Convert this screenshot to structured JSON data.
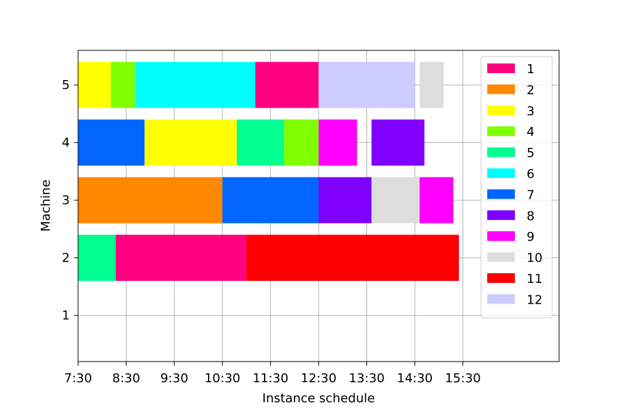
{
  "chart_data": {
    "type": "gantt",
    "xlabel": "Instance schedule",
    "ylabel": "Machine",
    "x_axis": {
      "unit": "time of day",
      "range": [
        "7:30",
        "17:30"
      ],
      "ticks": [
        "7:30",
        "8:30",
        "9:30",
        "10:30",
        "11:30",
        "12:30",
        "13:30",
        "14:30",
        "15:30"
      ]
    },
    "y_axis": {
      "range": [
        0.2,
        5.6
      ],
      "ticks": [
        "1",
        "2",
        "3",
        "4",
        "5"
      ]
    },
    "grid": true,
    "legend": {
      "placement": "top-right",
      "entries": [
        {
          "label": "1",
          "color": "#ff0080"
        },
        {
          "label": "2",
          "color": "#ff8800"
        },
        {
          "label": "3",
          "color": "#ffff00"
        },
        {
          "label": "4",
          "color": "#80ff00"
        },
        {
          "label": "5",
          "color": "#00ff90"
        },
        {
          "label": "6",
          "color": "#00ffff"
        },
        {
          "label": "7",
          "color": "#0066ff"
        },
        {
          "label": "8",
          "color": "#7f00ff"
        },
        {
          "label": "9",
          "color": "#ff00ff"
        },
        {
          "label": "10",
          "color": "#dddddd"
        },
        {
          "label": "11",
          "color": "#ff0000"
        },
        {
          "label": "12",
          "color": "#ccccff"
        }
      ]
    },
    "tasks": [
      {
        "machine": 2,
        "job": "5",
        "start": "7:30",
        "end": "8:17"
      },
      {
        "machine": 2,
        "job": "1",
        "start": "8:17",
        "end": "11:00"
      },
      {
        "machine": 2,
        "job": "11",
        "start": "11:00",
        "end": "15:25"
      },
      {
        "machine": 3,
        "job": "2",
        "start": "7:30",
        "end": "10:30"
      },
      {
        "machine": 3,
        "job": "7",
        "start": "10:30",
        "end": "12:30"
      },
      {
        "machine": 3,
        "job": "8",
        "start": "12:30",
        "end": "13:36"
      },
      {
        "machine": 3,
        "job": "10",
        "start": "13:36",
        "end": "14:36"
      },
      {
        "machine": 3,
        "job": "9",
        "start": "14:36",
        "end": "15:18"
      },
      {
        "machine": 4,
        "job": "7",
        "start": "7:30",
        "end": "8:53"
      },
      {
        "machine": 4,
        "job": "3",
        "start": "8:53",
        "end": "10:48"
      },
      {
        "machine": 4,
        "job": "5",
        "start": "10:48",
        "end": "11:47"
      },
      {
        "machine": 4,
        "job": "4",
        "start": "11:47",
        "end": "12:30"
      },
      {
        "machine": 4,
        "job": "9",
        "start": "12:30",
        "end": "13:18"
      },
      {
        "machine": 4,
        "job": "8",
        "start": "13:36",
        "end": "14:42"
      },
      {
        "machine": 5,
        "job": "3",
        "start": "7:30",
        "end": "8:11"
      },
      {
        "machine": 5,
        "job": "4",
        "start": "8:11",
        "end": "8:41"
      },
      {
        "machine": 5,
        "job": "6",
        "start": "8:41",
        "end": "11:11"
      },
      {
        "machine": 5,
        "job": "1",
        "start": "11:11",
        "end": "12:30"
      },
      {
        "machine": 5,
        "job": "12",
        "start": "12:30",
        "end": "14:30"
      },
      {
        "machine": 5,
        "job": "10",
        "start": "14:36",
        "end": "15:06"
      }
    ]
  }
}
